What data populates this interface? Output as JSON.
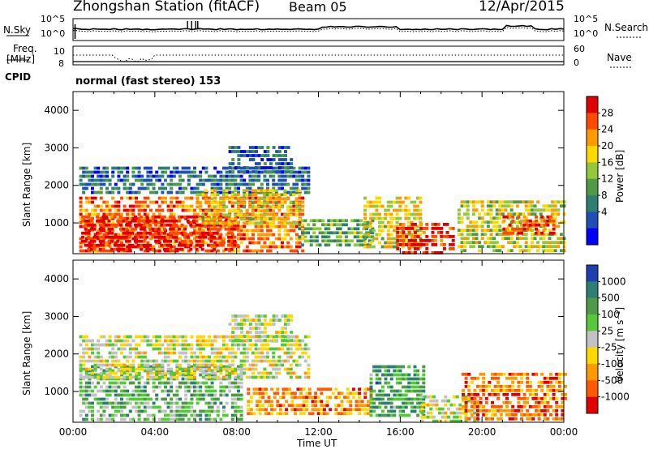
{
  "header": {
    "station_title": "Zhongshan Station (fitACF)",
    "beam_label": "Beam 05",
    "date": "12/Apr/2015"
  },
  "summary_panels": {
    "nsky_label": "N.Sky",
    "nsky_ticks": [
      "10^5",
      "10^0"
    ],
    "nsearch_label": "N.Search",
    "nsearch_ticks": [
      "10^5",
      "10^0"
    ],
    "freq_label_line1": "Freq.",
    "freq_label_line2": "[MHz]",
    "freq_ticks": [
      "10",
      "8"
    ],
    "nave_label": "Nave",
    "nave_ticks": [
      "60",
      "0"
    ],
    "cpid_label": "CPID",
    "cpid_text": "normal (fast stereo) 153"
  },
  "chart_data": [
    {
      "type": "heatmap",
      "panel": "power",
      "ylabel": "Slant Range [km]",
      "yticks": [
        "4000",
        "3000",
        "2000",
        "1000"
      ],
      "ylim": [
        180,
        4500
      ],
      "x_range_hours": [
        0,
        24
      ],
      "colorbar": {
        "label": "Power [dB]",
        "tick_labels": [
          "28",
          "24",
          "20",
          "16",
          "12",
          "8",
          "4"
        ],
        "colors": [
          "#e00000",
          "#ff4a00",
          "#ff9a00",
          "#ffd800",
          "#93c83a",
          "#4e9a46",
          "#2d7f74",
          "#1f4fb4",
          "#0000ff"
        ]
      },
      "echo_regions": [
        {
          "t0": 0.3,
          "t1": 11.2,
          "r0": 250,
          "r1": 1700,
          "level": 0.8
        },
        {
          "t0": 0.4,
          "t1": 8.0,
          "r0": 300,
          "r1": 1200,
          "level": 0.95
        },
        {
          "t0": 0.3,
          "t1": 11.5,
          "r0": 1800,
          "r1": 2500,
          "level": 0.25
        },
        {
          "t0": 6.0,
          "t1": 11.0,
          "r0": 1000,
          "r1": 1900,
          "level": 0.6
        },
        {
          "t0": 7.6,
          "t1": 10.6,
          "r0": 2400,
          "r1": 3050,
          "level": 0.2
        },
        {
          "t0": 11.0,
          "t1": 14.6,
          "r0": 350,
          "r1": 1100,
          "level": 0.4
        },
        {
          "t0": 14.2,
          "t1": 17.0,
          "r0": 350,
          "r1": 1700,
          "level": 0.6
        },
        {
          "t0": 15.8,
          "t1": 18.6,
          "r0": 200,
          "r1": 1000,
          "level": 0.9
        },
        {
          "t0": 18.8,
          "t1": 24.0,
          "r0": 300,
          "r1": 1600,
          "level": 0.55
        },
        {
          "t0": 21.0,
          "t1": 23.5,
          "r0": 700,
          "r1": 1200,
          "level": 0.85
        }
      ]
    },
    {
      "type": "heatmap",
      "panel": "velocity",
      "xlabel": "Time UT",
      "xticks": [
        "00:00",
        "04:00",
        "08:00",
        "12:00",
        "16:00",
        "20:00",
        "00:00"
      ],
      "ylabel": "Slant Range [km]",
      "yticks": [
        "4000",
        "3000",
        "2000",
        "1000"
      ],
      "ylim": [
        180,
        4500
      ],
      "x_range_hours": [
        0,
        24
      ],
      "colorbar": {
        "label": "Velocity [m s⁻¹]",
        "tick_labels": [
          "1000",
          "500",
          "100",
          "25",
          "-25",
          "-100",
          "-500",
          "-1000"
        ],
        "colors": [
          "#1f3fb0",
          "#2d7f74",
          "#4e9a46",
          "#56c83a",
          "#c2c2c2",
          "#ffd800",
          "#ff9a00",
          "#ff5a00",
          "#e00000"
        ]
      },
      "echo_regions": [
        {
          "t0": 0.3,
          "t1": 8.2,
          "r0": 250,
          "r1": 1700,
          "level": 0.65
        },
        {
          "t0": 0.3,
          "t1": 11.5,
          "r0": 1400,
          "r1": 2500,
          "level": 0.48
        },
        {
          "t0": 7.6,
          "t1": 10.6,
          "r0": 2400,
          "r1": 3050,
          "level": 0.48
        },
        {
          "t0": 8.5,
          "t1": 14.6,
          "r0": 350,
          "r1": 1100,
          "level": 0.25
        },
        {
          "t0": 14.5,
          "t1": 17.2,
          "r0": 350,
          "r1": 1700,
          "level": 0.72
        },
        {
          "t0": 17.0,
          "t1": 19.8,
          "r0": 200,
          "r1": 900,
          "level": 0.48
        },
        {
          "t0": 19.0,
          "t1": 24.0,
          "r0": 300,
          "r1": 1500,
          "level": 0.2
        }
      ]
    }
  ]
}
